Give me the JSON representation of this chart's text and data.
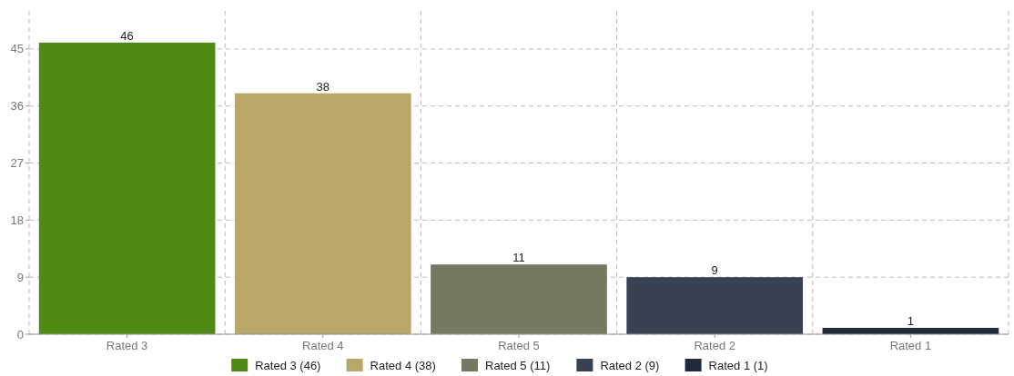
{
  "chart_data": {
    "type": "bar",
    "categories": [
      "Rated 3",
      "Rated 4",
      "Rated 5",
      "Rated 2",
      "Rated 1"
    ],
    "stacked": true,
    "series": [
      {
        "name": "Rated 3 (46)",
        "color": "#4e8a14",
        "values": [
          46,
          null,
          null,
          null,
          null
        ]
      },
      {
        "name": "Rated 4 (38)",
        "color": "#b9a769",
        "values": [
          null,
          38,
          null,
          null,
          null
        ]
      },
      {
        "name": "Rated 5 (11)",
        "color": "#737a60",
        "values": [
          null,
          null,
          11,
          null,
          null
        ]
      },
      {
        "name": "Rated 2 (9)",
        "color": "#374352",
        "values": [
          null,
          null,
          null,
          9,
          null
        ]
      },
      {
        "name": "Rated 1 (1)",
        "color": "#1f2a3c",
        "values": [
          null,
          null,
          null,
          null,
          1
        ]
      }
    ],
    "ylim": [
      0,
      51
    ],
    "yticks": [
      0,
      9,
      18,
      27,
      36,
      45
    ],
    "grid": true,
    "data_labels": true,
    "legend": "bottom"
  }
}
